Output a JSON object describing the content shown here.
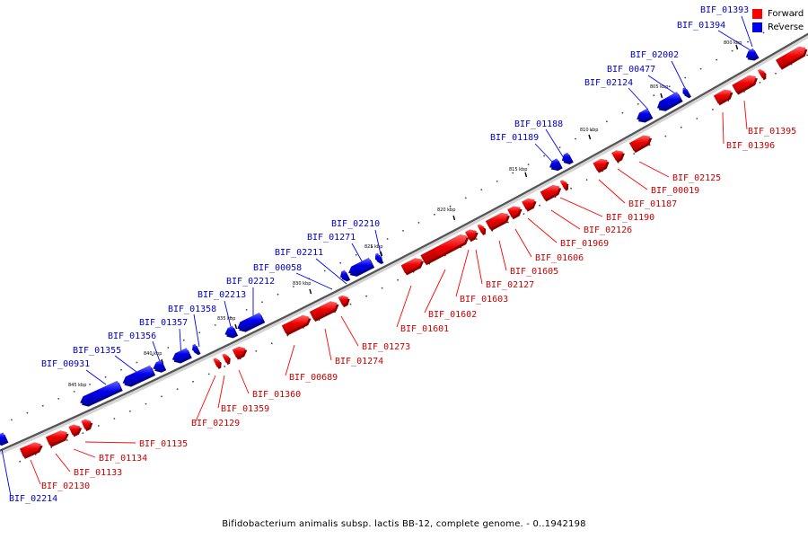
{
  "legend": {
    "forward_label": "Forward",
    "reverse_label": "Reverse",
    "forward_color": "#ff0000",
    "reverse_color": "#0000ee"
  },
  "caption": "Bifidobacterium animalis subsp. lactis BB-12, complete genome. - 0..1942198",
  "ticks": [
    "800 kbp",
    "805 kbp",
    "810 kbp",
    "815 kbp",
    "820 kbp",
    "825 kbp",
    "830 kbp",
    "835 kbp",
    "840 kbp",
    "845 kbp"
  ],
  "forward_genes": [
    "BIF_01395",
    "BIF_01396",
    "BIF_02125",
    "BIF_00019",
    "BIF_01187",
    "BIF_01190",
    "BIF_02126",
    "BIF_01969",
    "BIF_01606",
    "BIF_01605",
    "BIF_02127",
    "BIF_01603",
    "BIF_01602",
    "BIF_01601",
    "BIF_01273",
    "BIF_01274",
    "BIF_00689",
    "BIF_01360",
    "BIF_01359",
    "BIF_02129",
    "BIF_01135",
    "BIF_01134",
    "BIF_01133",
    "BIF_02130"
  ],
  "reverse_genes": [
    "BIF_01393",
    "BIF_01394",
    "BIF_02002",
    "BIF_00477",
    "BIF_02124",
    "BIF_01188",
    "BIF_01189",
    "BIF_02210",
    "BIF_01271",
    "BIF_02211",
    "BIF_00058",
    "BIF_02212",
    "BIF_02213",
    "BIF_01358",
    "BIF_01357",
    "BIF_01356",
    "BIF_01355",
    "BIF_00931",
    "BIF_02214"
  ]
}
